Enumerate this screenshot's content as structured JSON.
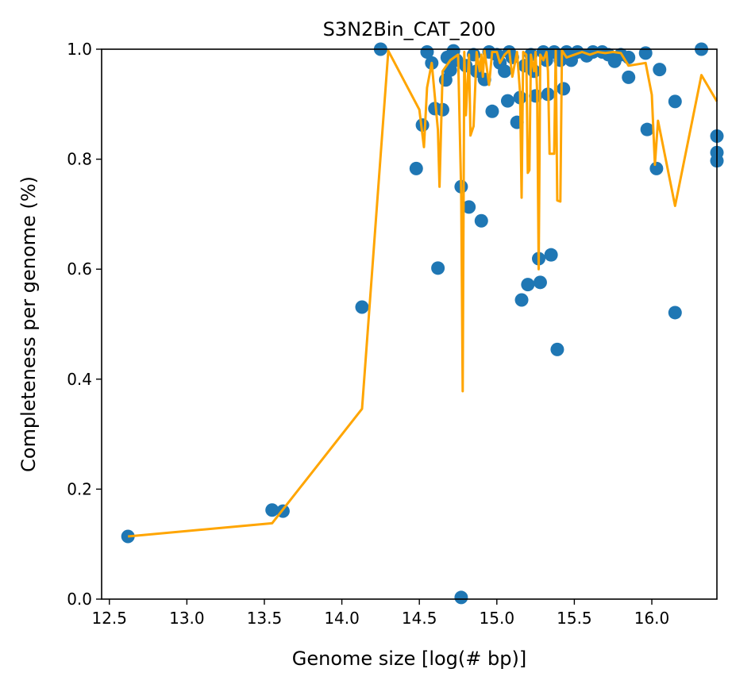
{
  "chart_data": {
    "type": "scatter",
    "title": "S3N2Bin_CAT_200",
    "xlabel": "Genome size [log(# bp)]",
    "ylabel": "Completeness per genome (%)",
    "xlim": [
      12.45,
      16.42
    ],
    "ylim": [
      0.0,
      1.0
    ],
    "xticks": [
      "12.5",
      "13.0",
      "13.5",
      "14.0",
      "14.5",
      "15.0",
      "15.5",
      "16.0"
    ],
    "yticks": [
      "0.0",
      "0.2",
      "0.4",
      "0.6",
      "0.8",
      "1.0"
    ],
    "grid": false,
    "colors": {
      "points": "#1f77b4",
      "line": "#ffa500"
    },
    "series": [
      {
        "type": "scatter",
        "points": [
          [
            12.62,
            0.114
          ],
          [
            13.55,
            0.162
          ],
          [
            13.62,
            0.16
          ],
          [
            14.13,
            0.531
          ],
          [
            14.25,
            1.0
          ],
          [
            14.48,
            0.783
          ],
          [
            14.52,
            0.862
          ],
          [
            14.55,
            0.995
          ],
          [
            14.58,
            0.975
          ],
          [
            14.6,
            0.892
          ],
          [
            14.62,
            0.602
          ],
          [
            14.65,
            0.89
          ],
          [
            14.67,
            0.944
          ],
          [
            14.68,
            0.985
          ],
          [
            14.7,
            0.962
          ],
          [
            14.72,
            0.997
          ],
          [
            14.74,
            0.98
          ],
          [
            14.77,
            0.75
          ],
          [
            14.77,
            0.003
          ],
          [
            14.8,
            0.97
          ],
          [
            14.82,
            0.713
          ],
          [
            14.85,
            0.99
          ],
          [
            14.87,
            0.96
          ],
          [
            14.9,
            0.688
          ],
          [
            14.92,
            0.945
          ],
          [
            14.95,
            0.995
          ],
          [
            14.97,
            0.887
          ],
          [
            15.0,
            0.99
          ],
          [
            15.02,
            0.975
          ],
          [
            15.05,
            0.96
          ],
          [
            15.07,
            0.906
          ],
          [
            15.08,
            0.995
          ],
          [
            15.1,
            0.985
          ],
          [
            15.13,
            0.867
          ],
          [
            15.15,
            0.912
          ],
          [
            15.16,
            0.544
          ],
          [
            15.18,
            0.97
          ],
          [
            15.2,
            0.572
          ],
          [
            15.22,
            0.99
          ],
          [
            15.24,
            0.96
          ],
          [
            15.25,
            0.915
          ],
          [
            15.27,
            0.619
          ],
          [
            15.28,
            0.576
          ],
          [
            15.3,
            0.995
          ],
          [
            15.32,
            0.98
          ],
          [
            15.33,
            0.918
          ],
          [
            15.35,
            0.626
          ],
          [
            15.37,
            0.995
          ],
          [
            15.39,
            0.454
          ],
          [
            15.41,
            0.98
          ],
          [
            15.43,
            0.928
          ],
          [
            15.45,
            0.995
          ],
          [
            15.48,
            0.98
          ],
          [
            15.52,
            0.995
          ],
          [
            15.58,
            0.988
          ],
          [
            15.62,
            0.995
          ],
          [
            15.68,
            0.995
          ],
          [
            15.72,
            0.99
          ],
          [
            15.76,
            0.978
          ],
          [
            15.8,
            0.99
          ],
          [
            15.85,
            0.949
          ],
          [
            15.85,
            0.985
          ],
          [
            15.96,
            0.993
          ],
          [
            15.97,
            0.854
          ],
          [
            16.03,
            0.783
          ],
          [
            16.05,
            0.963
          ],
          [
            16.15,
            0.905
          ],
          [
            16.15,
            0.521
          ],
          [
            16.32,
            1.0
          ],
          [
            16.42,
            0.842
          ],
          [
            16.42,
            0.812
          ],
          [
            16.42,
            0.797
          ]
        ]
      },
      {
        "type": "line",
        "points": [
          [
            12.62,
            0.114
          ],
          [
            13.55,
            0.138
          ],
          [
            14.13,
            0.346
          ],
          [
            14.3,
            0.997
          ],
          [
            14.5,
            0.89
          ],
          [
            14.53,
            0.822
          ],
          [
            14.55,
            0.93
          ],
          [
            14.58,
            0.975
          ],
          [
            14.62,
            0.853
          ],
          [
            14.63,
            0.75
          ],
          [
            14.65,
            0.96
          ],
          [
            14.7,
            0.98
          ],
          [
            14.75,
            0.99
          ],
          [
            14.77,
            0.74
          ],
          [
            14.78,
            0.378
          ],
          [
            14.79,
            0.995
          ],
          [
            14.8,
            0.88
          ],
          [
            14.82,
            0.99
          ],
          [
            14.83,
            0.843
          ],
          [
            14.85,
            0.86
          ],
          [
            14.87,
            0.995
          ],
          [
            14.89,
            0.96
          ],
          [
            14.9,
            0.99
          ],
          [
            14.91,
            0.95
          ],
          [
            14.92,
            0.998
          ],
          [
            14.95,
            0.935
          ],
          [
            14.97,
            0.995
          ],
          [
            15.0,
            0.995
          ],
          [
            15.02,
            0.975
          ],
          [
            15.05,
            0.99
          ],
          [
            15.08,
            0.998
          ],
          [
            15.1,
            0.95
          ],
          [
            15.13,
            0.995
          ],
          [
            15.15,
            0.92
          ],
          [
            15.16,
            0.73
          ],
          [
            15.17,
            0.995
          ],
          [
            15.19,
            0.99
          ],
          [
            15.2,
            0.775
          ],
          [
            15.21,
            0.78
          ],
          [
            15.22,
            0.99
          ],
          [
            15.24,
            0.96
          ],
          [
            15.25,
            0.995
          ],
          [
            15.26,
            0.92
          ],
          [
            15.27,
            0.6
          ],
          [
            15.28,
            0.99
          ],
          [
            15.3,
            0.98
          ],
          [
            15.32,
            0.995
          ],
          [
            15.33,
            0.96
          ],
          [
            15.34,
            0.81
          ],
          [
            15.37,
            0.81
          ],
          [
            15.38,
            0.998
          ],
          [
            15.39,
            0.725
          ],
          [
            15.41,
            0.723
          ],
          [
            15.42,
            0.998
          ],
          [
            15.45,
            0.985
          ],
          [
            15.5,
            0.99
          ],
          [
            15.55,
            0.995
          ],
          [
            15.6,
            0.99
          ],
          [
            15.65,
            0.995
          ],
          [
            15.7,
            0.993
          ],
          [
            15.75,
            0.995
          ],
          [
            15.8,
            0.993
          ],
          [
            15.85,
            0.97
          ],
          [
            15.96,
            0.975
          ],
          [
            16.0,
            0.917
          ],
          [
            16.02,
            0.79
          ],
          [
            16.04,
            0.87
          ],
          [
            16.15,
            0.715
          ],
          [
            16.32,
            0.953
          ],
          [
            16.42,
            0.905
          ]
        ]
      }
    ]
  }
}
